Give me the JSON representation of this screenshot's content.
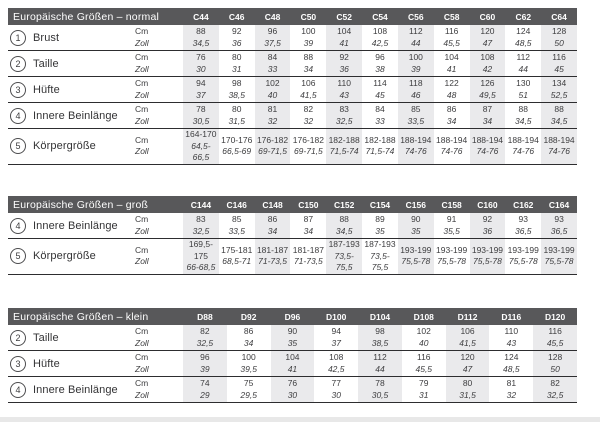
{
  "units": {
    "cm": "Cm",
    "zoll": "Zoll"
  },
  "colors": {
    "header_bar": "#58585a",
    "header_text": "#ffffff",
    "column_stripe": "#eaeaec",
    "body_text": "#3d3d3f",
    "divider": "#2d2d2f",
    "bottom_strip": "#e8e8e8"
  },
  "tables": [
    {
      "key": "normal",
      "title": "Europäische Größen – normal",
      "columns": [
        "C44",
        "C46",
        "C48",
        "C50",
        "C52",
        "C54",
        "C56",
        "C58",
        "C60",
        "C62",
        "C64"
      ],
      "rows": [
        {
          "num": "1",
          "label": "Brust",
          "cm": [
            "88",
            "92",
            "96",
            "100",
            "104",
            "108",
            "112",
            "116",
            "120",
            "124",
            "128"
          ],
          "zoll": [
            "34,5",
            "36",
            "37,5",
            "39",
            "41",
            "42,5",
            "44",
            "45,5",
            "47",
            "48,5",
            "50"
          ]
        },
        {
          "num": "2",
          "label": "Taille",
          "cm": [
            "76",
            "80",
            "84",
            "88",
            "92",
            "96",
            "100",
            "104",
            "108",
            "112",
            "116"
          ],
          "zoll": [
            "30",
            "31",
            "33",
            "34",
            "36",
            "38",
            "39",
            "41",
            "42",
            "44",
            "45"
          ]
        },
        {
          "num": "3",
          "label": "Hüfte",
          "cm": [
            "94",
            "98",
            "102",
            "106",
            "110",
            "114",
            "118",
            "122",
            "126",
            "130",
            "134"
          ],
          "zoll": [
            "37",
            "38,5",
            "40",
            "41,5",
            "43",
            "45",
            "46",
            "48",
            "49,5",
            "51",
            "52,5"
          ]
        },
        {
          "num": "4",
          "label": "Innere Beinlänge",
          "cm": [
            "78",
            "80",
            "81",
            "82",
            "83",
            "84",
            "85",
            "86",
            "87",
            "88",
            "88"
          ],
          "zoll": [
            "30,5",
            "31,5",
            "32",
            "32",
            "32,5",
            "33",
            "33,5",
            "34",
            "34",
            "34,5",
            "34,5"
          ]
        },
        {
          "num": "5",
          "label": "Körpergröße",
          "cm": [
            "164-170",
            "170-176",
            "176-182",
            "176-182",
            "182-188",
            "182-188",
            "188-194",
            "188-194",
            "188-194",
            "188-194",
            "188-194"
          ],
          "zoll": [
            "64,5-66,5",
            "66,5-69",
            "69-71,5",
            "69-71,5",
            "71,5-74",
            "71,5-74",
            "74-76",
            "74-76",
            "74-76",
            "74-76",
            "74-76"
          ]
        }
      ]
    },
    {
      "key": "gross",
      "title": "Europäische Größen – groß",
      "columns": [
        "C144",
        "C146",
        "C148",
        "C150",
        "C152",
        "C154",
        "C156",
        "C158",
        "C160",
        "C162",
        "C164"
      ],
      "rows": [
        {
          "num": "4",
          "label": "Innere Beinlänge",
          "cm": [
            "83",
            "85",
            "86",
            "87",
            "88",
            "89",
            "90",
            "91",
            "92",
            "93",
            "93"
          ],
          "zoll": [
            "32,5",
            "33,5",
            "34",
            "34",
            "34,5",
            "35",
            "35",
            "35,5",
            "36",
            "36,5",
            "36,5"
          ]
        },
        {
          "num": "5",
          "label": "Körpergröße",
          "cm": [
            "169,5-175",
            "175-181",
            "181-187",
            "181-187",
            "187-193",
            "187-193",
            "193-199",
            "193-199",
            "193-199",
            "193-199",
            "193-199"
          ],
          "zoll": [
            "66-68,5",
            "68,5-71",
            "71-73,5",
            "71-73,5",
            "73,5-75,5",
            "73,5-75,5",
            "75,5-78",
            "75,5-78",
            "75,5-78",
            "75,5-78",
            "75,5-78"
          ]
        }
      ]
    },
    {
      "key": "klein",
      "title": "Europäische Größen – klein",
      "columns": [
        "D88",
        "D92",
        "D96",
        "D100",
        "D104",
        "D108",
        "D112",
        "D116",
        "D120"
      ],
      "rows": [
        {
          "num": "2",
          "label": "Taille",
          "cm": [
            "82",
            "86",
            "90",
            "94",
            "98",
            "102",
            "106",
            "110",
            "116"
          ],
          "zoll": [
            "32,5",
            "34",
            "35",
            "37",
            "38,5",
            "40",
            "41,5",
            "43",
            "45,5"
          ]
        },
        {
          "num": "3",
          "label": "Hüfte",
          "cm": [
            "96",
            "100",
            "104",
            "108",
            "112",
            "116",
            "120",
            "124",
            "128"
          ],
          "zoll": [
            "39",
            "39,5",
            "41",
            "42,5",
            "44",
            "45,5",
            "47",
            "48,5",
            "50"
          ]
        },
        {
          "num": "4",
          "label": "Innere Beinlänge",
          "cm": [
            "74",
            "75",
            "76",
            "77",
            "78",
            "79",
            "80",
            "81",
            "82"
          ],
          "zoll": [
            "29",
            "29,5",
            "30",
            "30",
            "30,5",
            "31",
            "31,5",
            "32",
            "32,5"
          ]
        }
      ]
    }
  ]
}
